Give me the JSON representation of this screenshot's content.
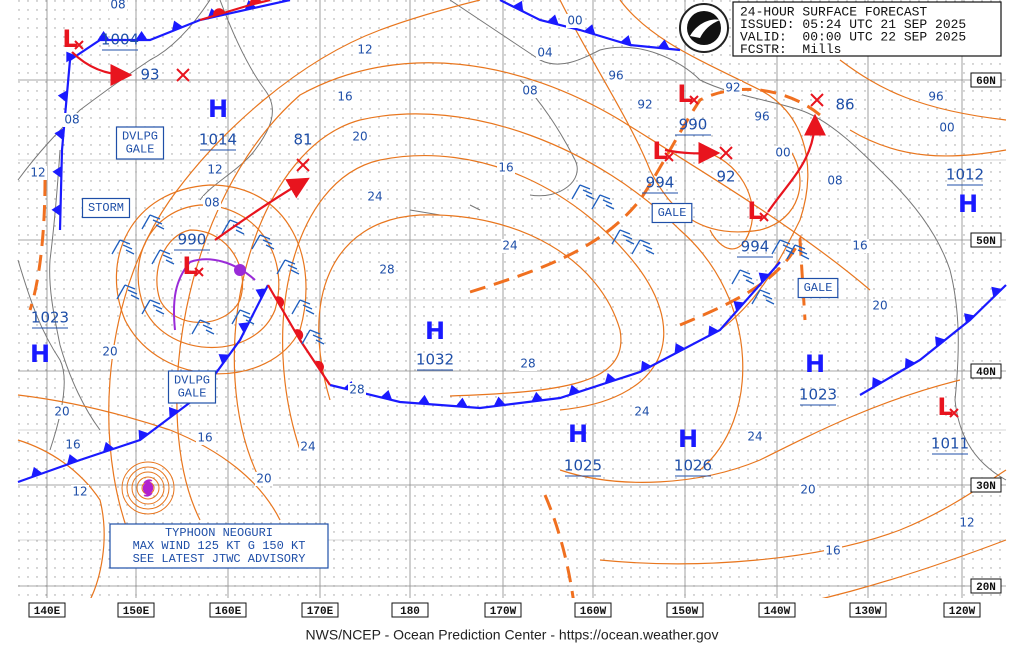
{
  "header": {
    "lines": [
      "24-HOUR SURFACE FORECAST",
      "ISSUED: 05:24 UTC 21 SEP 2025",
      "VALID:  00:00 UTC 22 SEP 2025",
      "FCSTR:  Mills"
    ]
  },
  "footer": "NWS/NCEP - Ocean Prediction Center - https://ocean.weather.gov",
  "lon_labels": [
    "140E",
    "150E",
    "160E",
    "170E",
    "180",
    "170W",
    "160W",
    "150W",
    "140W",
    "130W",
    "120W"
  ],
  "lat_labels": [
    "60N",
    "50N",
    "40N",
    "30N",
    "20N"
  ],
  "centers": [
    {
      "symbol": "H",
      "pressure": "1014"
    },
    {
      "symbol": "H",
      "pressure": "1023"
    },
    {
      "symbol": "H",
      "pressure": "1032"
    },
    {
      "symbol": "H",
      "pressure": "1025"
    },
    {
      "symbol": "H",
      "pressure": "1026"
    },
    {
      "symbol": "H",
      "pressure": "1023"
    },
    {
      "symbol": "H",
      "pressure": "1012"
    },
    {
      "symbol": "L",
      "pressure": "1004"
    },
    {
      "symbol": "L",
      "pressure": "990"
    },
    {
      "symbol": "L",
      "pressure": "990"
    },
    {
      "symbol": "L",
      "pressure": "994"
    },
    {
      "symbol": "L",
      "pressure": "994"
    },
    {
      "symbol": "L",
      "pressure": "1011"
    }
  ],
  "forecast_positions": [
    "93",
    "81",
    "92",
    "86"
  ],
  "warnings": [
    {
      "lines": [
        "DVLPG",
        "GALE"
      ]
    },
    {
      "lines": [
        "STORM"
      ]
    },
    {
      "lines": [
        "DVLPG",
        "GALE"
      ]
    },
    {
      "lines": [
        "GALE"
      ]
    },
    {
      "lines": [
        "GALE"
      ]
    }
  ],
  "typhoon": {
    "lines": [
      "TYPHOON NEOGURI",
      "MAX WIND 125 KT G 150 KT",
      "SEE LATEST JTWC ADVISORY"
    ]
  },
  "isobar_labels": [
    "08",
    "12",
    "16",
    "20",
    "24",
    "28",
    "16",
    "24",
    "28",
    "28",
    "24",
    "24",
    "20",
    "16",
    "12",
    "20",
    "16",
    "08",
    "00",
    "96",
    "92",
    "96",
    "92",
    "04",
    "00",
    "08",
    "12",
    "08",
    "08",
    "12",
    "20",
    "20",
    "16",
    "12",
    "16",
    "20",
    "24",
    "12",
    "96",
    "00"
  ]
}
